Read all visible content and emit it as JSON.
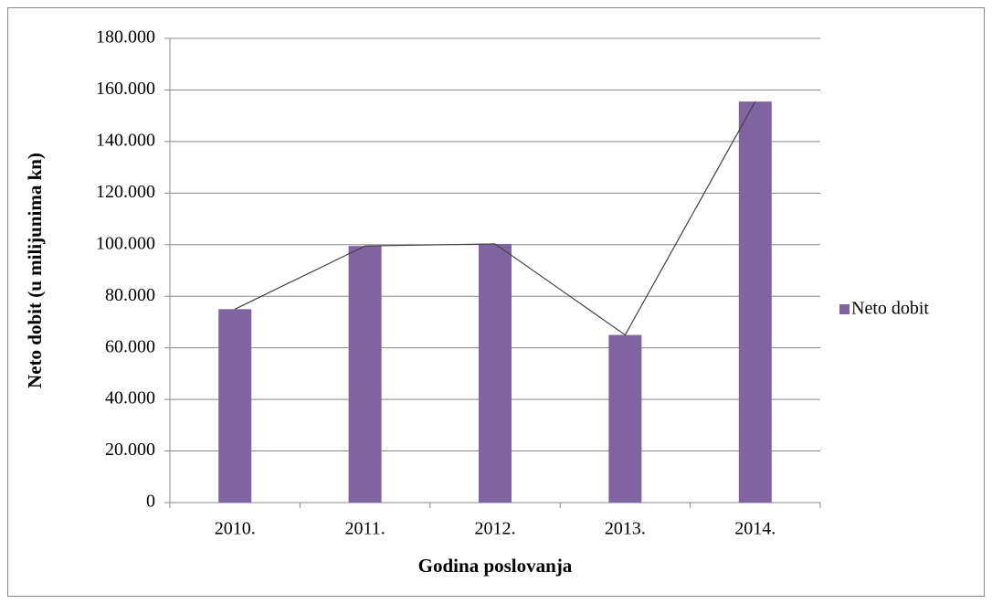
{
  "chart_data": {
    "type": "bar",
    "categories": [
      "2010.",
      "2011.",
      "2012.",
      "2013.",
      "2014."
    ],
    "series": [
      {
        "name": "Neto dobit",
        "color": "#8064a2",
        "values": [
          75000,
          99500,
          100300,
          65000,
          155500
        ]
      }
    ],
    "overlay_line_color": "#404040",
    "xlabel": "Godina poslovanja",
    "ylabel": "Neto dobit  (u milijunima  kn)",
    "ylim": [
      0,
      180000
    ],
    "yticks": [
      0,
      {
        "value": 20000,
        "label": "20.000"
      },
      {
        "value": 40000,
        "label": "40.000"
      },
      {
        "value": 60000,
        "label": "60.000"
      },
      {
        "value": 80000,
        "label": "80.000"
      },
      {
        "value": 100000,
        "label": "100.000"
      },
      {
        "value": 120000,
        "label": "120.000"
      },
      {
        "value": 140000,
        "label": "140.000"
      },
      {
        "value": 160000,
        "label": "160.000"
      },
      {
        "value": 180000,
        "label": "180.000"
      }
    ],
    "grid": true,
    "legend": "right"
  }
}
